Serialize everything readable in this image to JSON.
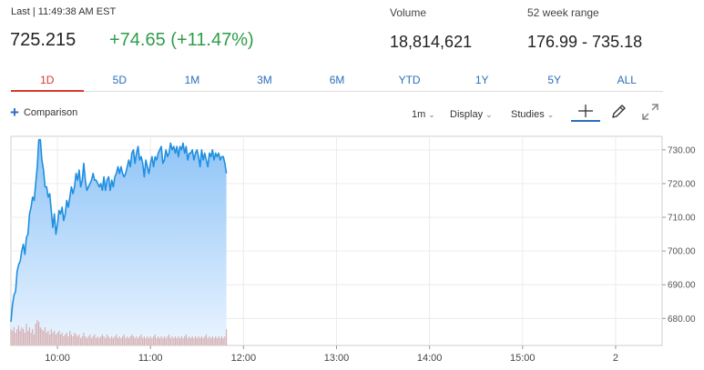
{
  "quote": {
    "last_time": "Last | 11:49:38 AM EST",
    "last_price": "725.215",
    "change": "+74.65 (+11.47%)",
    "volume_label": "Volume",
    "volume_value": "18,814,621",
    "range_label": "52 week range",
    "range_value": "176.99 - 735.18"
  },
  "range_tabs": [
    {
      "label": "1D",
      "active": true
    },
    {
      "label": "5D",
      "active": false
    },
    {
      "label": "1M",
      "active": false
    },
    {
      "label": "3M",
      "active": false
    },
    {
      "label": "6M",
      "active": false
    },
    {
      "label": "YTD",
      "active": false
    },
    {
      "label": "1Y",
      "active": false
    },
    {
      "label": "5Y",
      "active": false
    },
    {
      "label": "ALL",
      "active": false
    }
  ],
  "toolbar": {
    "comparison_label": "Comparison",
    "interval_label": "1m",
    "display_label": "Display",
    "studies_label": "Studies",
    "crosshair_icon": "crosshair-icon",
    "pencil_icon": "pencil-icon",
    "expand_icon": "expand-icon"
  },
  "colors": {
    "line": "#1f8fe0",
    "area_top": "#8fc4f7",
    "area_bottom": "#eaf4ff",
    "volume": "#d4a3a3",
    "positive": "#2e9e48",
    "active_tab": "#d8392b",
    "link": "#2a6ebb"
  },
  "chart_data": {
    "type": "area",
    "ylim": [
      672,
      734
    ],
    "y_ticks": [
      680,
      690,
      700,
      710,
      720,
      730
    ],
    "y_tick_labels": [
      "680.00",
      "690.00",
      "700.00",
      "710.00",
      "720.00",
      "730.00"
    ],
    "x_ticks": [
      60,
      120,
      180,
      240,
      300,
      360,
      420
    ],
    "x_tick_labels": [
      "10:00",
      "11:00",
      "12:00",
      "13:00",
      "14:00",
      "15:00",
      "2"
    ],
    "xlim": [
      30,
      450
    ],
    "grid": true,
    "series": [
      {
        "x": [
          30,
          31,
          32,
          33,
          34,
          35,
          36,
          37,
          38,
          39,
          40,
          41,
          42,
          43,
          44,
          45,
          46,
          47,
          48,
          49,
          50,
          51,
          52,
          53,
          54,
          55,
          56,
          57,
          58,
          59,
          60,
          61,
          62,
          63,
          64,
          65,
          66,
          67,
          68,
          69,
          70,
          71,
          72,
          73,
          74,
          75,
          76,
          77,
          78,
          79,
          80,
          81,
          82,
          83,
          84,
          85,
          86,
          87,
          88,
          89,
          90,
          91,
          92,
          93,
          94,
          95,
          96,
          97,
          98,
          99,
          100,
          101,
          102,
          103,
          104,
          105,
          106,
          107,
          108,
          109,
          110,
          111,
          112,
          113,
          114,
          115,
          116,
          117,
          118,
          119,
          120,
          121,
          122,
          123,
          124,
          125,
          126,
          127,
          128,
          129,
          130,
          131,
          132,
          133,
          134,
          135,
          136,
          137,
          138,
          139,
          140,
          141,
          142,
          143,
          144,
          145,
          146,
          147,
          148,
          149,
          150,
          151,
          152,
          153,
          154,
          155,
          156,
          157,
          158,
          159,
          160,
          161,
          162,
          163,
          164,
          165,
          166,
          167,
          168,
          169
        ],
        "values": [
          679,
          684,
          687,
          688,
          694,
          696,
          697,
          700,
          702,
          699,
          704,
          705,
          711,
          713,
          716,
          715,
          720,
          725,
          733,
          733,
          727,
          724,
          719,
          719,
          716,
          717,
          712,
          707,
          711,
          705,
          708,
          712,
          711,
          713,
          709,
          711,
          715,
          713,
          716,
          719,
          717,
          719,
          723,
          721,
          724,
          719,
          721,
          726,
          721,
          718,
          719,
          720,
          721,
          723,
          721,
          721,
          720,
          719,
          720,
          718,
          722,
          718,
          721,
          722,
          718,
          721,
          719,
          722,
          723,
          725,
          723,
          725,
          723,
          722,
          723,
          725,
          727,
          725,
          729,
          730,
          726,
          729,
          731,
          727,
          728,
          726,
          722,
          727,
          725,
          723,
          726,
          728,
          725,
          728,
          727,
          729,
          730,
          731,
          726,
          727,
          730,
          728,
          729,
          732,
          730,
          731,
          729,
          731,
          728,
          731,
          730,
          732,
          729,
          731,
          727,
          729,
          729,
          730,
          727,
          729,
          730,
          728,
          725,
          730,
          727,
          729,
          727,
          725,
          729,
          728,
          730,
          727,
          729,
          728,
          729,
          727,
          728,
          728,
          726,
          723
        ]
      }
    ],
    "volume": [
      9,
      8,
      10,
      7,
      9,
      11,
      8,
      10,
      9,
      7,
      12,
      8,
      10,
      7,
      9,
      6,
      12,
      14,
      13,
      10,
      9,
      8,
      10,
      7,
      8,
      6,
      9,
      7,
      8,
      6,
      7,
      8,
      6,
      7,
      5,
      6,
      7,
      5,
      8,
      6,
      5,
      7,
      6,
      5,
      6,
      4,
      5,
      7,
      5,
      4,
      5,
      6,
      4,
      5,
      6,
      4,
      5,
      4,
      5,
      6,
      5,
      4,
      6,
      5,
      4,
      5,
      4,
      5,
      6,
      4,
      5,
      4,
      5,
      6,
      4,
      5,
      4,
      5,
      6,
      5,
      4,
      5,
      4,
      5,
      6,
      4,
      5,
      4,
      5,
      4,
      5,
      4,
      5,
      6,
      4,
      5,
      4,
      5,
      4,
      5,
      4,
      5,
      6,
      4,
      5,
      4,
      5,
      4,
      5,
      4,
      5,
      4,
      5,
      6,
      4,
      5,
      4,
      5,
      4,
      5,
      4,
      5,
      4,
      5,
      4,
      5,
      6,
      4,
      5,
      4,
      5,
      4,
      5,
      4,
      5,
      4,
      5,
      4,
      5,
      9
    ]
  }
}
